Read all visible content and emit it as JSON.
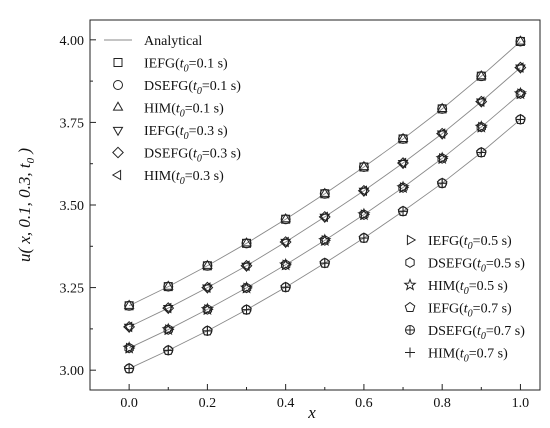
{
  "chart_data": {
    "type": "line",
    "xlabel": "x",
    "ylabel": "u( x, 0.1, 0.3, t0 )",
    "xlim": [
      -0.1,
      1.05
    ],
    "ylim": [
      2.94,
      4.06
    ],
    "xticks": [
      0.0,
      0.2,
      0.4,
      0.6,
      0.8,
      1.0
    ],
    "yticks": [
      3.0,
      3.25,
      3.5,
      3.75,
      4.0
    ],
    "x": [
      0.0,
      0.1,
      0.2,
      0.3,
      0.4,
      0.5,
      0.6,
      0.7,
      0.8,
      0.9,
      1.0
    ],
    "analytical_label": "Analytical",
    "curves": [
      {
        "t0": "0.1",
        "values": [
          3.195,
          3.253,
          3.316,
          3.384,
          3.457,
          3.534,
          3.615,
          3.7,
          3.791,
          3.89,
          3.995
        ]
      },
      {
        "t0": "0.3",
        "values": [
          3.131,
          3.188,
          3.25,
          3.316,
          3.388,
          3.464,
          3.543,
          3.627,
          3.716,
          3.813,
          3.916
        ]
      },
      {
        "t0": "0.5",
        "values": [
          3.067,
          3.123,
          3.184,
          3.249,
          3.319,
          3.393,
          3.471,
          3.553,
          3.641,
          3.736,
          3.837
        ]
      },
      {
        "t0": "0.7",
        "values": [
          3.005,
          3.06,
          3.119,
          3.183,
          3.251,
          3.324,
          3.4,
          3.481,
          3.566,
          3.659,
          3.759
        ]
      }
    ],
    "series": [
      {
        "method": "IEFG",
        "t0": "0.1",
        "marker": "square",
        "curve": 0
      },
      {
        "method": "DSEFG",
        "t0": "0.1",
        "marker": "circle",
        "curve": 0
      },
      {
        "method": "HIM",
        "t0": "0.1",
        "marker": "triangle-up",
        "curve": 0
      },
      {
        "method": "IEFG",
        "t0": "0.3",
        "marker": "triangle-down",
        "curve": 1
      },
      {
        "method": "DSEFG",
        "t0": "0.3",
        "marker": "diamond",
        "curve": 1
      },
      {
        "method": "HIM",
        "t0": "0.3",
        "marker": "triangle-left",
        "curve": 1
      },
      {
        "method": "IEFG",
        "t0": "0.5",
        "marker": "triangle-right",
        "curve": 2
      },
      {
        "method": "DSEFG",
        "t0": "0.5",
        "marker": "hexagon",
        "curve": 2
      },
      {
        "method": "HIM",
        "t0": "0.5",
        "marker": "star",
        "curve": 2
      },
      {
        "method": "IEFG",
        "t0": "0.7",
        "marker": "pentagon",
        "curve": 3
      },
      {
        "method": "DSEFG",
        "t0": "0.7",
        "marker": "circle-cross",
        "curve": 3
      },
      {
        "method": "HIM",
        "t0": "0.7",
        "marker": "plus",
        "curve": 3
      }
    ],
    "legend_placement": [
      "top-left",
      "bottom-right"
    ],
    "grid": false,
    "colors": {
      "curve": "#8a8a8a",
      "marker": "#222222",
      "axis": "#222222"
    }
  }
}
